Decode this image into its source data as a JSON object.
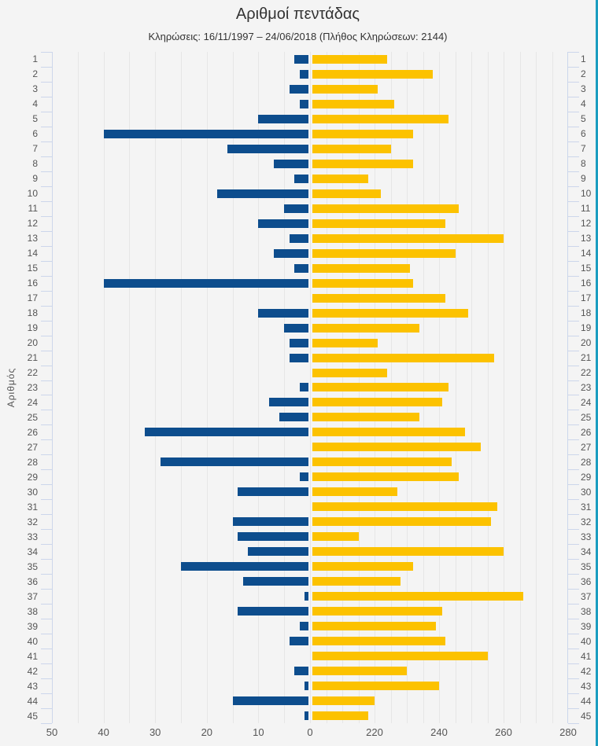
{
  "title": "Αριθμοί πεντάδας",
  "subtitle": "Κληρώσεις: 16/11/1997 – 24/06/2018 (Πλήθος Κληρώσεων: 2144)",
  "y_axis_title": "Αριθμός",
  "draw_count": "2144",
  "colors": {
    "blue": "#0d4d8d",
    "yellow": "#fcc200",
    "background": "#f4f4f4",
    "grid": "#e6e6e6",
    "axis": "#ccd6eb",
    "label": "#555555",
    "title": "#333333",
    "accent_border": "#1b9dc0"
  },
  "chart_data": {
    "type": "bar",
    "orientation": "horizontal-diverging",
    "grid": true,
    "legend": false,
    "categories": [
      1,
      2,
      3,
      4,
      5,
      6,
      7,
      8,
      9,
      10,
      11,
      12,
      13,
      14,
      15,
      16,
      17,
      18,
      19,
      20,
      21,
      22,
      23,
      24,
      25,
      26,
      27,
      28,
      29,
      30,
      31,
      32,
      33,
      34,
      35,
      36,
      37,
      38,
      39,
      40,
      41,
      42,
      43,
      44,
      45
    ],
    "series": [
      {
        "name": "blue_left",
        "direction": "left",
        "axis_range": [
          0,
          50
        ],
        "values": [
          3,
          2,
          4,
          2,
          10,
          40,
          16,
          7,
          3,
          18,
          5,
          10,
          4,
          7,
          3,
          40,
          0,
          10,
          5,
          4,
          4,
          0,
          2,
          8,
          6,
          32,
          0,
          29,
          2,
          14,
          0,
          15,
          14,
          12,
          25,
          13,
          1,
          14,
          2,
          4,
          0,
          3,
          1,
          15,
          1
        ]
      },
      {
        "name": "yellow_right",
        "direction": "right",
        "axis_range": [
          200,
          280
        ],
        "values": [
          224,
          238,
          221,
          226,
          243,
          232,
          225,
          232,
          218,
          222,
          246,
          242,
          260,
          245,
          231,
          232,
          242,
          249,
          234,
          221,
          257,
          224,
          243,
          241,
          234,
          248,
          253,
          244,
          246,
          227,
          258,
          256,
          215,
          260,
          232,
          228,
          266,
          241,
          239,
          242,
          255,
          230,
          240,
          220,
          218
        ]
      }
    ],
    "x_tick_labels_left": [
      50,
      40,
      30,
      20,
      10,
      0
    ],
    "x_tick_labels_right": [
      220,
      240,
      260,
      280
    ],
    "gridline_step": 5
  }
}
